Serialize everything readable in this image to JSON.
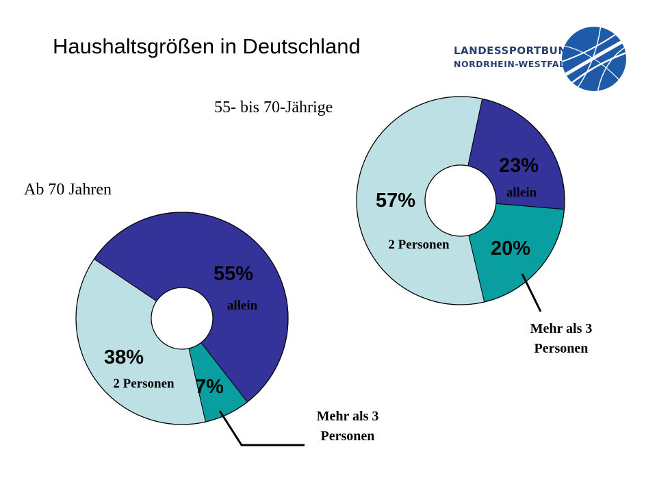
{
  "slide": {
    "title": "Haushaltsgrößen in Deutschland",
    "logo": {
      "line1": "LANDESSPORTBUND",
      "line2": "NORDRHEIN-WESTFALEN",
      "icon": "globe-logo-icon"
    }
  },
  "colors": {
    "allein": "#343399",
    "zwei_personen": "#bde0e4",
    "mehr_als_3": "#099e9f",
    "text_dark": "#000000",
    "logo_blue": "#1f5aa8"
  },
  "chart_data": [
    {
      "type": "pie",
      "title": "55- bis 70-Jährige",
      "slices": [
        {
          "category": "allein",
          "value": 23,
          "value_label": "23%",
          "label": "allein"
        },
        {
          "category": "mehr_als_3",
          "value": 20,
          "value_label": "20%",
          "label": "Mehr als 3 Personen",
          "label_lines": [
            "Mehr als 3",
            "Personen"
          ]
        },
        {
          "category": "zwei_personen",
          "value": 57,
          "value_label": "57%",
          "label": "2 Personen"
        }
      ]
    },
    {
      "type": "pie",
      "title": "Ab 70 Jahren",
      "slices": [
        {
          "category": "allein",
          "value": 55,
          "value_label": "55%",
          "label": "allein"
        },
        {
          "category": "mehr_als_3",
          "value": 7,
          "value_label": "7%",
          "label": "Mehr als 3 Personen",
          "label_lines": [
            "Mehr als 3",
            "Personen"
          ]
        },
        {
          "category": "zwei_personen",
          "value": 38,
          "value_label": "38%",
          "label": "2 Personen"
        }
      ]
    }
  ]
}
